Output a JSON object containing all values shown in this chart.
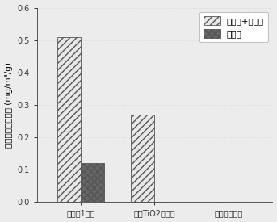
{
  "categories": [
    "实施例1纤维",
    "加入TiO2的纤维",
    "普通棉质纤维"
  ],
  "visible_ir_values": [
    0.51,
    0.27,
    0.0
  ],
  "ir_only_values": [
    0.12,
    0.0,
    0.0
  ],
  "visible_ir_label": "可见光+红外光",
  "ir_only_label": "红外光",
  "ylabel": "对甲醛的降解能力 (mg/m³/g)",
  "ylim": [
    0,
    0.6
  ],
  "yticks": [
    0.0,
    0.1,
    0.2,
    0.3,
    0.4,
    0.5,
    0.6
  ],
  "bar_width": 0.32,
  "visible_ir_color": "#e8e8e8",
  "visible_ir_hatch": "////",
  "ir_only_color": "#666666",
  "ir_only_hatch": "xxxx",
  "background_color": "#ececec",
  "plot_bg_color": "#ececec",
  "legend_fontsize": 7.5,
  "tick_fontsize": 7,
  "ylabel_fontsize": 7.5,
  "bar_edgecolor": "#555555",
  "legend_edgecolor": "#aaaaaa"
}
